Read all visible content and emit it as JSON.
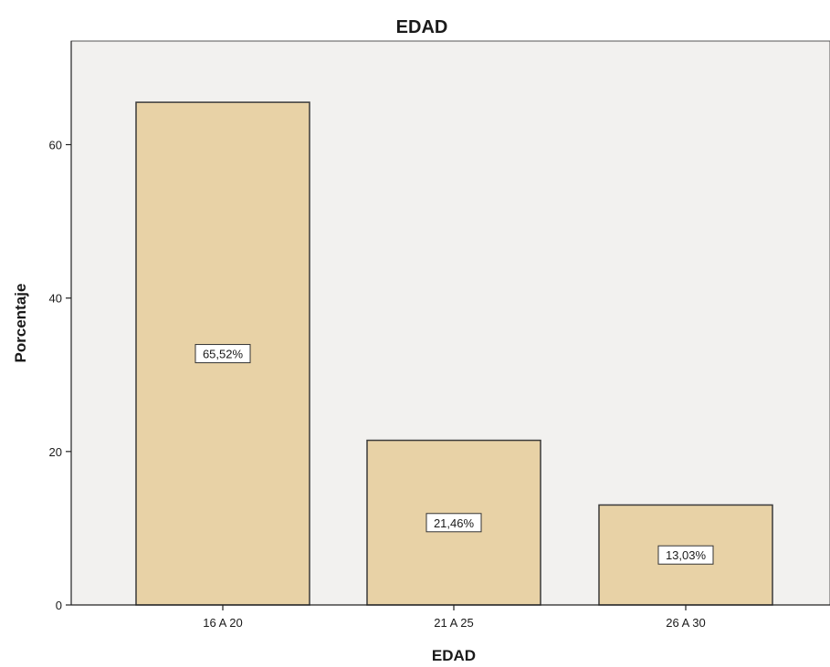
{
  "chart_data": {
    "type": "bar",
    "title": "EDAD",
    "xlabel": "EDAD",
    "ylabel": "Porcentaje",
    "categories": [
      "16 A 20",
      "21 A 25",
      "26 A 30"
    ],
    "values": [
      65.52,
      21.46,
      13.03
    ],
    "data_labels": [
      "65,52%",
      "21,46%",
      "13,03%"
    ],
    "y_ticks": [
      0,
      20,
      40,
      60
    ],
    "ylim": [
      0,
      73.5
    ],
    "grid": false,
    "legend": "none",
    "colors": {
      "bar_fill": "#e8d2a6",
      "bar_stroke": "#3a3a3a",
      "plot_background": "#f2f1ef",
      "axis": "#222222"
    }
  }
}
